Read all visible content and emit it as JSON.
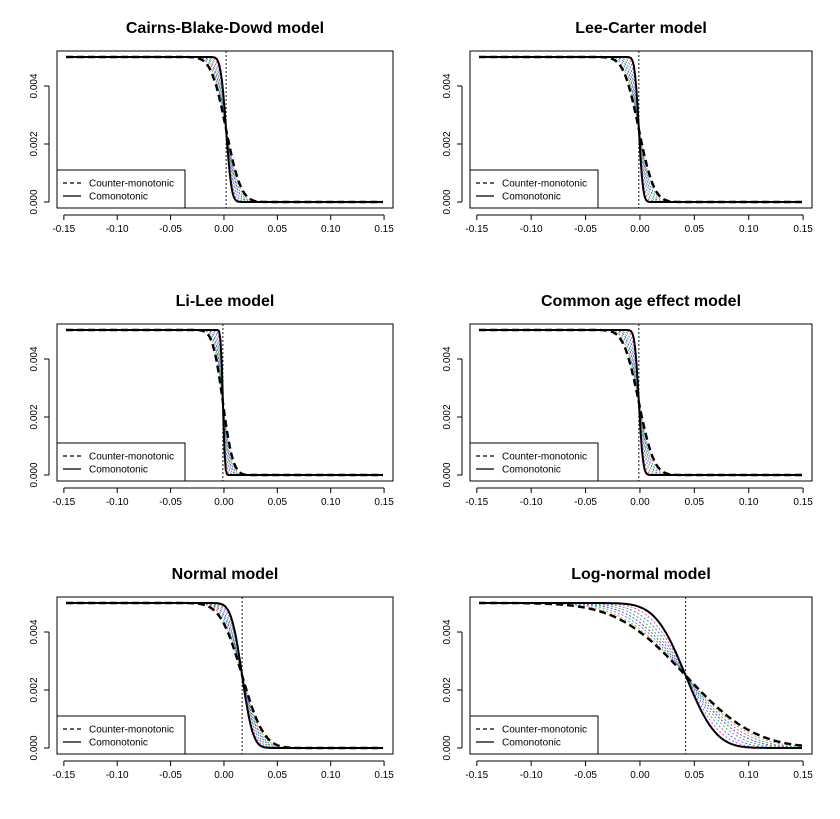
{
  "chart_data": [
    {
      "type": "line",
      "title": "Cairns-Blake-Dowd model",
      "xlim": [
        -0.15,
        0.15
      ],
      "ylim": [
        0,
        0.005
      ],
      "x_ticks": [
        "-0.15",
        "-0.10",
        "-0.05",
        "0.00",
        "0.05",
        "0.10",
        "0.15"
      ],
      "y_ticks": [
        "0.000",
        "0.002",
        "0.004"
      ],
      "legend": [
        "Counter-monotonic",
        "Comonotonic"
      ],
      "legend_position": "bottom-left",
      "vline": 0.002,
      "center": 0.002,
      "scale_comonotonic": 0.004,
      "scale_countermonotonic": 0.011
    },
    {
      "type": "line",
      "title": "Lee-Carter model",
      "xlim": [
        -0.15,
        0.15
      ],
      "ylim": [
        0,
        0.005
      ],
      "x_ticks": [
        "-0.15",
        "-0.10",
        "-0.05",
        "0.00",
        "0.05",
        "0.10",
        "0.15"
      ],
      "y_ticks": [
        "0.000",
        "0.002",
        "0.004"
      ],
      "legend": [
        "Counter-monotonic",
        "Comonotonic"
      ],
      "legend_position": "bottom-left",
      "vline": -0.001,
      "center": -0.001,
      "scale_comonotonic": 0.003,
      "scale_countermonotonic": 0.011
    },
    {
      "type": "line",
      "title": "Li-Lee model",
      "xlim": [
        -0.15,
        0.15
      ],
      "ylim": [
        0,
        0.005
      ],
      "x_ticks": [
        "-0.15",
        "-0.10",
        "-0.05",
        "0.00",
        "0.05",
        "0.10",
        "0.15"
      ],
      "y_ticks": [
        "0.000",
        "0.002",
        "0.004"
      ],
      "legend": [
        "Counter-monotonic",
        "Comonotonic"
      ],
      "legend_position": "bottom-left",
      "vline": -0.001,
      "center": -0.001,
      "scale_comonotonic": 0.0015,
      "scale_countermonotonic": 0.0075
    },
    {
      "type": "line",
      "title": "Common age effect model",
      "xlim": [
        -0.15,
        0.15
      ],
      "ylim": [
        0,
        0.005
      ],
      "x_ticks": [
        "-0.15",
        "-0.10",
        "-0.05",
        "0.00",
        "0.05",
        "0.10",
        "0.15"
      ],
      "y_ticks": [
        "0.000",
        "0.002",
        "0.004"
      ],
      "legend": [
        "Counter-monotonic",
        "Comonotonic"
      ],
      "legend_position": "bottom-left",
      "vline": -0.001,
      "center": -0.001,
      "scale_comonotonic": 0.003,
      "scale_countermonotonic": 0.011
    },
    {
      "type": "line",
      "title": "Normal model",
      "xlim": [
        -0.15,
        0.15
      ],
      "ylim": [
        0,
        0.005
      ],
      "x_ticks": [
        "-0.15",
        "-0.10",
        "-0.05",
        "0.00",
        "0.05",
        "0.10",
        "0.15"
      ],
      "y_ticks": [
        "0.000",
        "0.002",
        "0.004"
      ],
      "legend": [
        "Counter-monotonic",
        "Comonotonic"
      ],
      "legend_position": "bottom-left",
      "vline": 0.017,
      "center": 0.017,
      "scale_comonotonic": 0.008,
      "scale_countermonotonic": 0.016
    },
    {
      "type": "line",
      "title": "Log-normal model",
      "xlim": [
        -0.15,
        0.15
      ],
      "ylim": [
        0,
        0.005
      ],
      "x_ticks": [
        "-0.15",
        "-0.10",
        "-0.05",
        "0.00",
        "0.05",
        "0.10",
        "0.15"
      ],
      "y_ticks": [
        "0.000",
        "0.002",
        "0.004"
      ],
      "legend": [
        "Counter-monotonic",
        "Comonotonic"
      ],
      "legend_position": "bottom-left",
      "vline": 0.042,
      "center": 0.042,
      "scale_comonotonic": 0.022,
      "scale_countermonotonic": 0.05
    }
  ],
  "colors": {
    "main": "#000000",
    "intermediate": [
      "#e0409a",
      "#4f64ff",
      "#20c020",
      "#9018d0",
      "#00b0c0",
      "#e08020"
    ]
  }
}
